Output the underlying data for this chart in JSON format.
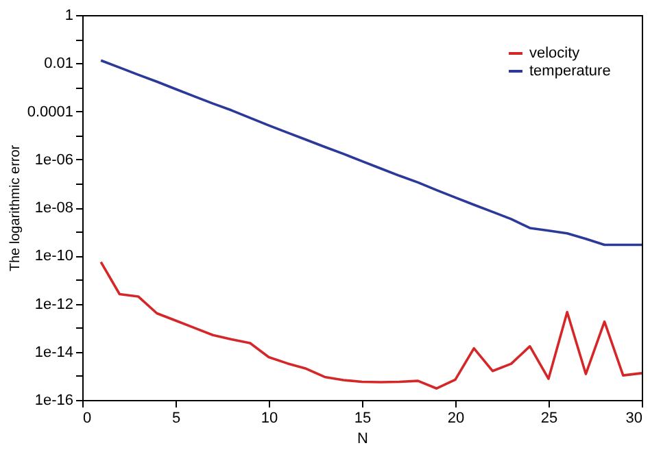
{
  "chart_data": {
    "type": "line",
    "xlabel": "N",
    "ylabel": "The logarithmic error",
    "x": [
      1,
      2,
      3,
      4,
      5,
      6,
      7,
      8,
      9,
      10,
      11,
      12,
      13,
      14,
      15,
      16,
      17,
      18,
      19,
      20,
      21,
      22,
      23,
      24,
      25,
      26,
      27,
      28,
      29,
      30
    ],
    "series": [
      {
        "name": "velocity",
        "color": "#d62728",
        "values": [
          5.4e-11,
          2.5e-12,
          2e-12,
          4e-13,
          2e-13,
          1e-13,
          5e-14,
          3.3e-14,
          2.3e-14,
          6e-15,
          3.3e-15,
          2e-15,
          9e-16,
          6.7e-16,
          5.7e-16,
          5.5e-16,
          5.7e-16,
          6.2e-16,
          3e-16,
          7e-16,
          1.4e-14,
          1.6e-15,
          3.2e-15,
          1.7e-14,
          7.6e-16,
          4.5e-13,
          1.2e-15,
          1.8e-13,
          1.05e-15,
          1.3e-15
        ]
      },
      {
        "name": "temperature",
        "color": "#2b3a99",
        "values": [
          0.013,
          0.0066,
          0.0033,
          0.0017,
          0.00084,
          0.00042,
          0.00021,
          0.00011,
          5.3e-05,
          2.6e-05,
          1.3e-05,
          6.6e-06,
          3.3e-06,
          1.7e-06,
          8.4e-07,
          4.2e-07,
          2.1e-07,
          1.1e-07,
          5.3e-08,
          2.6e-08,
          1.3e-08,
          6.6e-09,
          3.3e-09,
          1.4e-09,
          1.1e-09,
          8.4e-10,
          5e-10,
          2.8e-10,
          2.8e-10,
          2.8e-10
        ]
      }
    ],
    "log": "y",
    "xlim": [
      0,
      30
    ],
    "xticks": [
      0,
      5,
      10,
      15,
      20,
      25,
      30
    ],
    "ylim": [
      1e-16,
      1
    ],
    "yticks": [
      1,
      {
        "value": 0.1,
        "label": null
      },
      0.01,
      {
        "value": 0.001,
        "label": null
      },
      0.0001,
      {
        "value": 1e-05,
        "label": null
      },
      {
        "value": 1e-06,
        "label": "1e-06"
      },
      {
        "value": 1e-07,
        "label": null
      },
      {
        "value": 1e-08,
        "label": "1e-08"
      },
      {
        "value": 1e-09,
        "label": null
      },
      {
        "value": 1e-10,
        "label": "1e-10"
      },
      {
        "value": 1e-11,
        "label": null
      },
      {
        "value": 1e-12,
        "label": "1e-12"
      },
      {
        "value": 1e-13,
        "label": null
      },
      {
        "value": 1e-14,
        "label": "1e-14"
      },
      {
        "value": 1e-15,
        "label": null
      },
      {
        "value": 1e-16,
        "label": "1e-16"
      }
    ],
    "grid": false,
    "legend": "top right",
    "line_style": "solid",
    "marker": "none"
  }
}
